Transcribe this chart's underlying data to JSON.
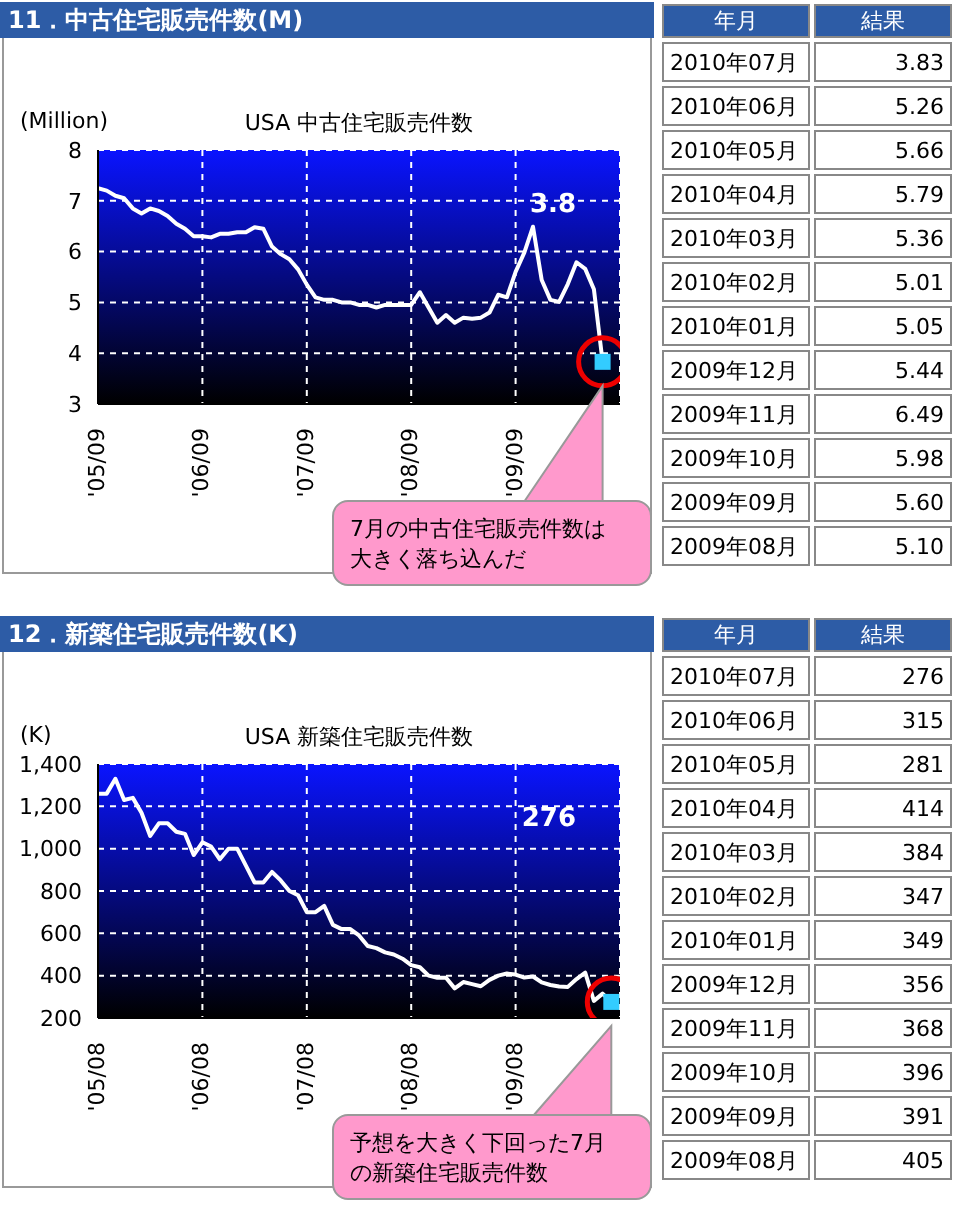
{
  "chart_data": [
    {
      "type": "line",
      "title": "11．中古住宅販売件数(M)",
      "subtitle": "USA 中古住宅販売件数",
      "ylabel": "(Million)",
      "x": [
        "2005-09",
        "2005-10",
        "2005-11",
        "2005-12",
        "2006-01",
        "2006-02",
        "2006-03",
        "2006-04",
        "2006-05",
        "2006-06",
        "2006-07",
        "2006-08",
        "2006-09",
        "2006-10",
        "2006-11",
        "2006-12",
        "2007-01",
        "2007-02",
        "2007-03",
        "2007-04",
        "2007-05",
        "2007-06",
        "2007-07",
        "2007-08",
        "2007-09",
        "2007-10",
        "2007-11",
        "2007-12",
        "2008-01",
        "2008-02",
        "2008-03",
        "2008-04",
        "2008-05",
        "2008-06",
        "2008-07",
        "2008-08",
        "2008-09",
        "2008-10",
        "2008-11",
        "2008-12",
        "2009-01",
        "2009-02",
        "2009-03",
        "2009-04",
        "2009-05",
        "2009-06",
        "2009-07",
        "2009-08",
        "2009-09",
        "2009-10",
        "2009-11",
        "2009-12",
        "2010-01",
        "2010-02",
        "2010-03",
        "2010-04",
        "2010-05",
        "2010-06",
        "2010-07"
      ],
      "series": [
        {
          "type": "line",
          "color": "#ffffff",
          "values": [
            7.25,
            7.2,
            7.1,
            7.05,
            6.85,
            6.75,
            6.85,
            6.8,
            6.7,
            6.55,
            6.45,
            6.3,
            6.3,
            6.28,
            6.35,
            6.35,
            6.38,
            6.38,
            6.48,
            6.45,
            6.1,
            5.95,
            5.85,
            5.65,
            5.35,
            5.1,
            5.05,
            5.05,
            5.0,
            5.0,
            4.95,
            4.95,
            4.9,
            4.95,
            4.95,
            4.95,
            4.95,
            5.2,
            4.9,
            4.6,
            4.75,
            4.6,
            4.7,
            4.68,
            4.7,
            4.8,
            5.15,
            5.1,
            5.6,
            5.98,
            6.49,
            5.44,
            5.05,
            5.01,
            5.36,
            5.79,
            5.66,
            5.26,
            3.83
          ]
        },
        {
          "type": "scatter",
          "color": "#33ccff",
          "x": [
            "2010-07"
          ],
          "values": [
            3.83
          ]
        }
      ],
      "grid": true,
      "xlim": [
        "2005-09",
        "2010-09"
      ],
      "xticks": [
        {
          "value": "2005-09",
          "label": "'05/09"
        },
        {
          "value": "2006-09",
          "label": "'06/09"
        },
        {
          "value": "2007-09",
          "label": "'07/09"
        },
        {
          "value": "2008-09",
          "label": "'08/09"
        },
        {
          "value": "2009-09",
          "label": "'09/09"
        }
      ],
      "ylim": [
        3,
        8
      ],
      "yticks": [
        3,
        4,
        5,
        6,
        7,
        8
      ],
      "annotations": [
        "3.8",
        "7月の中古住宅販売件数は大きく落ち込んだ"
      ]
    },
    {
      "type": "other",
      "xlabel": "年月",
      "ylabel": "結果",
      "categories": [
        "2010年07月",
        "2010年06月",
        "2010年05月",
        "2010年04月",
        "2010年03月",
        "2010年02月",
        "2010年01月",
        "2009年12月",
        "2009年11月",
        "2009年10月",
        "2009年09月",
        "2009年08月"
      ],
      "values": [
        3.83,
        5.26,
        5.66,
        5.79,
        5.36,
        5.01,
        5.05,
        5.44,
        6.49,
        5.98,
        5.6,
        5.1
      ],
      "value_labels": [
        "3.83",
        "5.26",
        "5.66",
        "5.79",
        "5.36",
        "5.01",
        "5.05",
        "5.44",
        "6.49",
        "5.98",
        "5.60",
        "5.10"
      ]
    },
    {
      "type": "line",
      "title": "12．新築住宅販売件数(K)",
      "subtitle": "USA 新築住宅販売件数",
      "ylabel": "(K)",
      "x": [
        "2005-08",
        "2005-09",
        "2005-10",
        "2005-11",
        "2005-12",
        "2006-01",
        "2006-02",
        "2006-03",
        "2006-04",
        "2006-05",
        "2006-06",
        "2006-07",
        "2006-08",
        "2006-09",
        "2006-10",
        "2006-11",
        "2006-12",
        "2007-01",
        "2007-02",
        "2007-03",
        "2007-04",
        "2007-05",
        "2007-06",
        "2007-07",
        "2007-08",
        "2007-09",
        "2007-10",
        "2007-11",
        "2007-12",
        "2008-01",
        "2008-02",
        "2008-03",
        "2008-04",
        "2008-05",
        "2008-06",
        "2008-07",
        "2008-08",
        "2008-09",
        "2008-10",
        "2008-11",
        "2008-12",
        "2009-01",
        "2009-02",
        "2009-03",
        "2009-04",
        "2009-05",
        "2009-06",
        "2009-07",
        "2009-08",
        "2009-09",
        "2009-10",
        "2009-11",
        "2009-12",
        "2010-01",
        "2010-02",
        "2010-03",
        "2010-04",
        "2010-05",
        "2010-06",
        "2010-07"
      ],
      "series": [
        {
          "type": "line",
          "color": "#ffffff",
          "values": [
            1260,
            1260,
            1330,
            1230,
            1240,
            1170,
            1060,
            1120,
            1120,
            1080,
            1070,
            970,
            1030,
            1010,
            950,
            1000,
            1000,
            920,
            840,
            840,
            890,
            850,
            800,
            780,
            700,
            700,
            730,
            640,
            620,
            620,
            590,
            540,
            530,
            510,
            500,
            480,
            450,
            440,
            400,
            390,
            390,
            340,
            370,
            360,
            350,
            380,
            400,
            410,
            405,
            391,
            396,
            368,
            356,
            349,
            347,
            384,
            414,
            281,
            315,
            276
          ]
        },
        {
          "type": "scatter",
          "color": "#33ccff",
          "x": [
            "2010-07"
          ],
          "values": [
            276
          ]
        }
      ],
      "grid": true,
      "xlim": [
        "2005-08",
        "2010-08"
      ],
      "xticks": [
        {
          "value": "2005-08",
          "label": "'05/08"
        },
        {
          "value": "2006-08",
          "label": "'06/08"
        },
        {
          "value": "2007-08",
          "label": "'07/08"
        },
        {
          "value": "2008-08",
          "label": "'08/08"
        },
        {
          "value": "2009-08",
          "label": "'09/08"
        }
      ],
      "ylim": [
        200,
        1400
      ],
      "yticks": [
        200,
        400,
        600,
        800,
        {
          "value": 1000,
          "label": "1,000"
        },
        {
          "value": 1200,
          "label": "1,200"
        },
        {
          "value": 1400,
          "label": "1,400"
        }
      ],
      "annotations": [
        "276",
        "予想を大きく下回った7月の新築住宅販売件数"
      ]
    },
    {
      "type": "other",
      "xlabel": "年月",
      "ylabel": "結果",
      "categories": [
        "2010年07月",
        "2010年06月",
        "2010年05月",
        "2010年04月",
        "2010年03月",
        "2010年02月",
        "2010年01月",
        "2009年12月",
        "2009年11月",
        "2009年10月",
        "2009年09月",
        "2009年08月"
      ],
      "values": [
        276,
        315,
        281,
        414,
        384,
        347,
        349,
        356,
        368,
        396,
        391,
        405
      ],
      "value_labels": [
        "276",
        "315",
        "281",
        "414",
        "384",
        "347",
        "349",
        "356",
        "368",
        "396",
        "391",
        "405"
      ]
    }
  ]
}
